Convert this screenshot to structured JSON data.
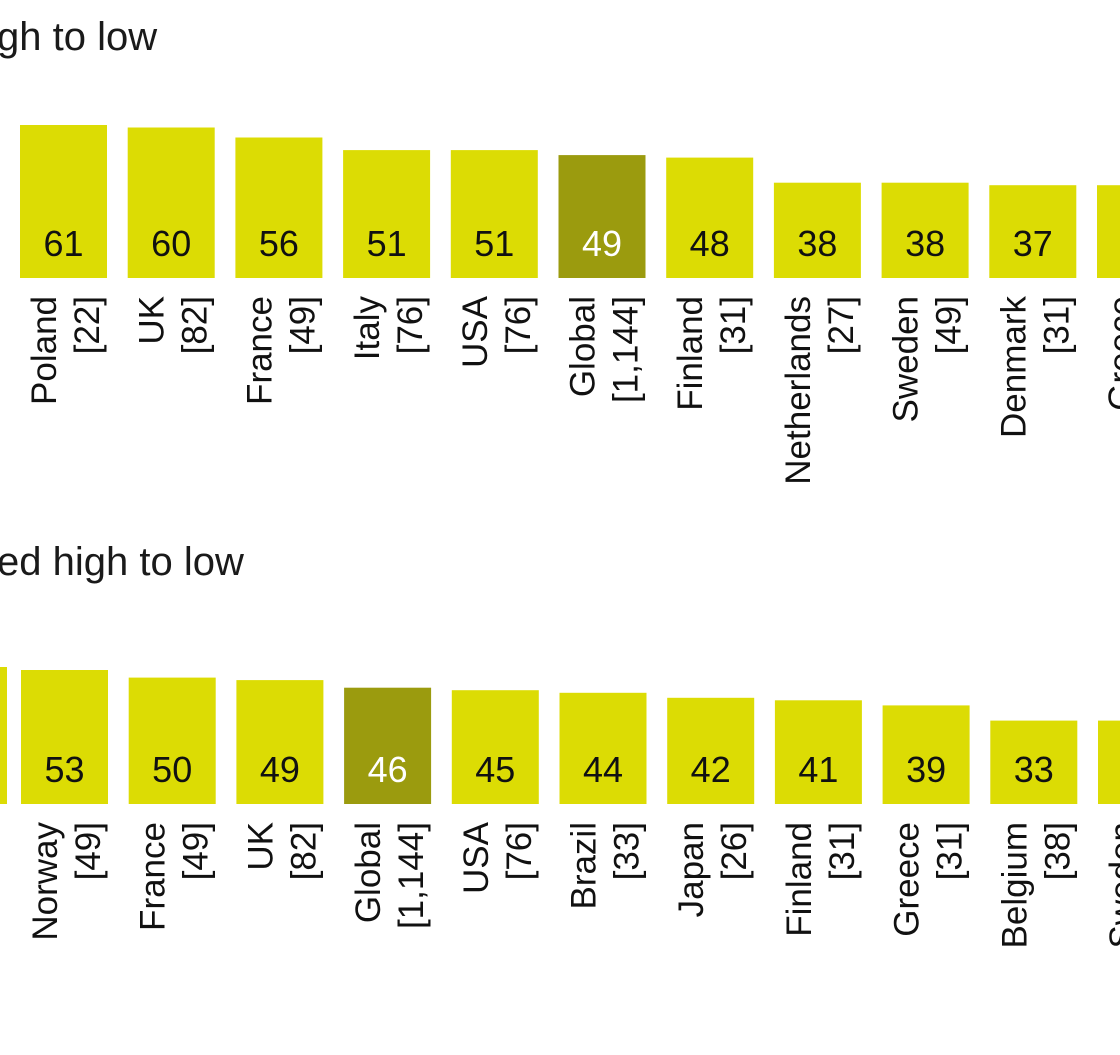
{
  "colors": {
    "bar": "#DCDC04",
    "highlight": "#9B9B0E",
    "text_on_bar": "#111111",
    "text_on_highlight": "#ffffff"
  },
  "chart_data": [
    {
      "type": "bar",
      "title": "gh to low",
      "categories": [
        "Poland",
        "UK",
        "France",
        "Italy",
        "USA",
        "Global",
        "Finland",
        "Netherlands",
        "Sweden",
        "Denmark",
        "Greece"
      ],
      "sample_sizes": [
        "[22]",
        "[82]",
        "[49]",
        "[76]",
        "[76]",
        "[1,144]",
        "[31]",
        "[27]",
        "[49]",
        "[31]",
        ""
      ],
      "values": [
        61,
        60,
        56,
        51,
        51,
        49,
        48,
        38,
        38,
        37,
        37
      ],
      "value_labels": [
        "61",
        "60",
        "56",
        "51",
        "51",
        "49",
        "48",
        "38",
        "38",
        "37",
        ""
      ],
      "highlight": "Global"
    },
    {
      "type": "bar",
      "title": "ed high to low",
      "categories": [
        "Norway",
        "France",
        "UK",
        "Global",
        "USA",
        "Brazil",
        "Japan",
        "Finland",
        "Greece",
        "Belgium",
        "Sweden"
      ],
      "sample_sizes": [
        "[49]",
        "[49]",
        "[82]",
        "[1,144]",
        "[76]",
        "[33]",
        "[26]",
        "[31]",
        "[31]",
        "[38]",
        ""
      ],
      "values": [
        53,
        50,
        49,
        46,
        45,
        44,
        42,
        41,
        39,
        33,
        33
      ],
      "value_labels": [
        "53",
        "50",
        "49",
        "46",
        "45",
        "44",
        "42",
        "41",
        "39",
        "33",
        ""
      ],
      "highlight": "Global"
    }
  ]
}
